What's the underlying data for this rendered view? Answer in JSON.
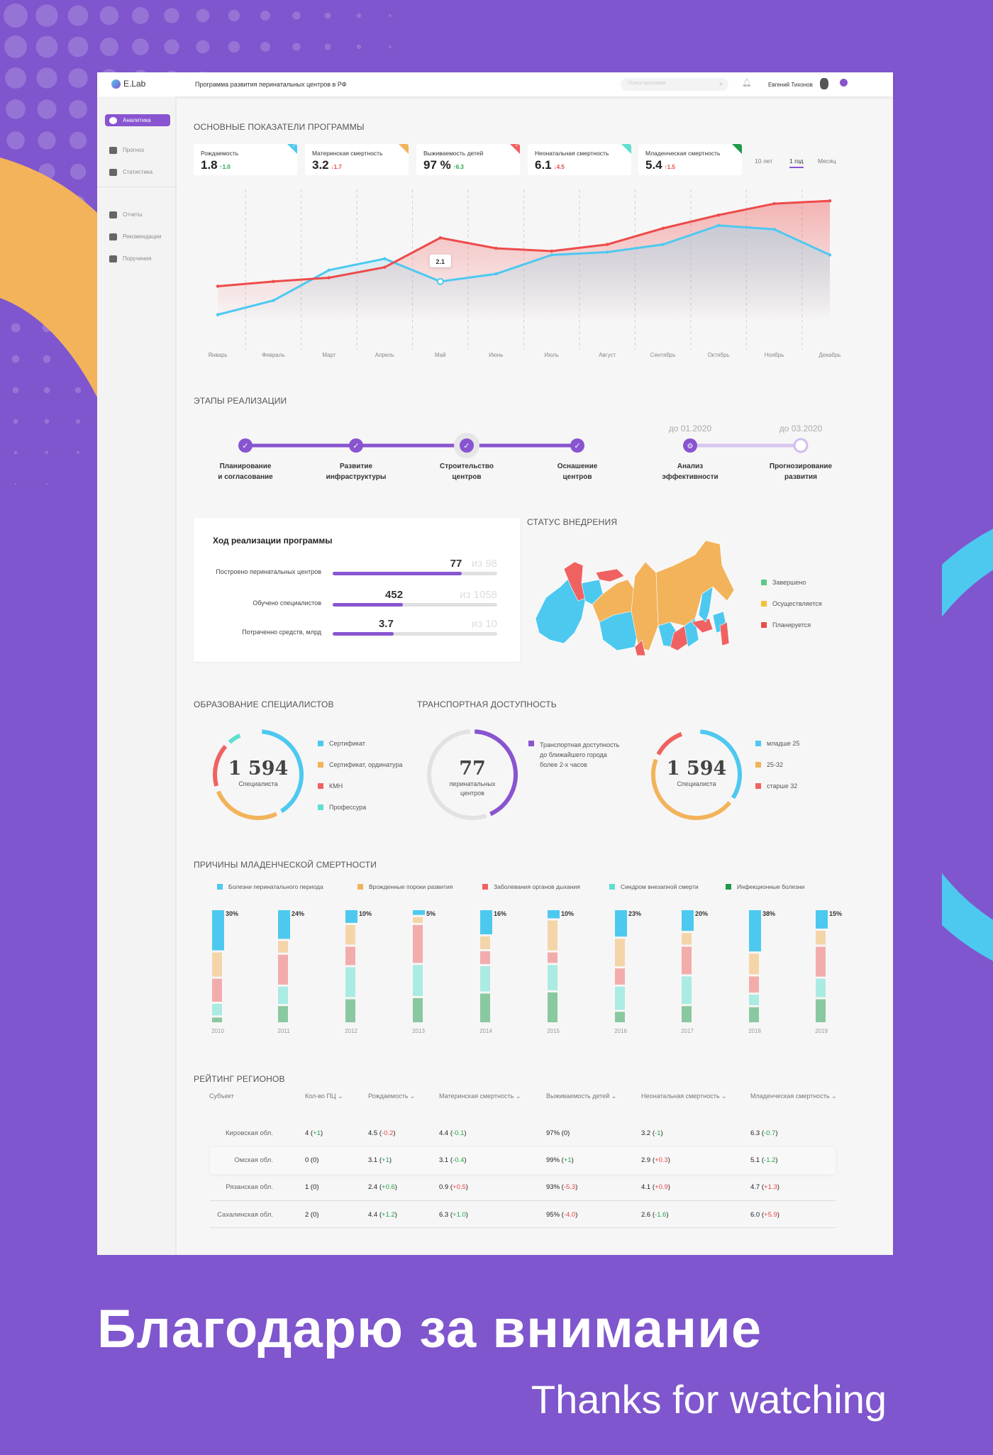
{
  "colors": {
    "accent": "#8854d0",
    "cyan": "#4dc9f0",
    "orange": "#f2b35b",
    "red": "#f06262",
    "teal": "#5ee0cf",
    "green": "#1e9a4a",
    "background": "#7f56cd"
  },
  "header": {
    "logo": "E.Lab",
    "title": "Программа развития перинатальных центров в  РФ",
    "search_placeholder": "Поиск программ",
    "user_name": "Евгений Тихонов"
  },
  "sidebar": {
    "items": [
      {
        "label": "Аналитика",
        "icon": "pie-chart-icon",
        "active": true
      },
      {
        "label": "Прогноз",
        "icon": "umbrella-icon"
      },
      {
        "label": "Статистика",
        "icon": "folder-icon"
      },
      {
        "label": "Отчеты",
        "icon": "document-icon"
      },
      {
        "label": "Рекомендации",
        "icon": "edit-document-icon"
      },
      {
        "label": "Поручения",
        "icon": "book-icon"
      }
    ]
  },
  "kpi": {
    "title": "ОСНОВНЫЕ ПОКАЗАТЕЛИ ПРОГРАММЫ",
    "cards": [
      {
        "label": "Рождаемость",
        "value": "1.8",
        "delta": "↑1.0",
        "delta_class": "good",
        "corner": "#4dc9f0",
        "check": true
      },
      {
        "label": "Материнская смертность",
        "value": "3.2",
        "delta": "↓1.7",
        "delta_class": "bad",
        "corner": "#f2b35b",
        "check": false
      },
      {
        "label": "Выживаемость детей",
        "value": "97 %",
        "delta": "↑6.3",
        "delta_class": "good",
        "corner": "#f06262",
        "check": true
      },
      {
        "label": "Неонатальная смертность",
        "value": "6.1",
        "delta": "↓4.5",
        "delta_class": "bad",
        "corner": "#5ee0cf",
        "check": false
      },
      {
        "label": "Младенческая смертность",
        "value": "5.4",
        "delta": "↑1.5",
        "delta_class": "bad",
        "corner": "#1e9a4a",
        "check": false
      }
    ],
    "tabs": [
      {
        "label": "10 лет"
      },
      {
        "label": "1 год",
        "active": true
      },
      {
        "label": "Месяц"
      }
    ]
  },
  "chart_data": [
    {
      "type": "line",
      "categories": [
        "Январь",
        "Февраль",
        "Март",
        "Апрель",
        "Май",
        "Июнь",
        "Июль",
        "Август",
        "Сентябрь",
        "Октябрь",
        "Ноябрь",
        "Декабрь"
      ],
      "series": [
        {
          "color": "#4dc9f0",
          "values": [
            0.35,
            1.1,
            2.7,
            3.3,
            2.1,
            2.5,
            3.5,
            3.65,
            4.05,
            5.05,
            4.85,
            3.5
          ]
        },
        {
          "color": "#ee4b4b",
          "values": [
            1.85,
            2.1,
            2.3,
            2.85,
            4.4,
            3.85,
            3.7,
            4.05,
            4.9,
            5.6,
            6.2,
            6.35
          ]
        }
      ],
      "ylim": [
        0,
        7
      ],
      "grid": "vertical-dashed",
      "tooltip": {
        "category": "Май",
        "value": "2.1"
      }
    },
    {
      "type": "bar",
      "stacked": true,
      "title": "ПРИЧИНЫ МЛАДЕНЧЕСКОЙ СМЕРТНОСТИ",
      "categories": [
        "2010",
        "2011",
        "2012",
        "2013",
        "2014",
        "2015",
        "2016",
        "2017",
        "2018",
        "2019"
      ],
      "data_labels": [
        "30%",
        "24%",
        "10%",
        "5%",
        "16%",
        "10%",
        "23%",
        "20%",
        "38%",
        "15%"
      ],
      "series": [
        {
          "name": "Болезни перинатального периода",
          "color": "#4dc9f0",
          "values": [
            37,
            27,
            13,
            6,
            23,
            9,
            25,
            20,
            38,
            18
          ]
        },
        {
          "name": "Врожденные пороки развития",
          "color": "#f2b35b",
          "values": [
            23,
            12,
            19,
            7,
            13,
            28,
            26,
            12,
            20,
            14
          ]
        },
        {
          "name": "Заболевания органов дыхания",
          "color": "#f06262",
          "values": [
            22,
            28,
            18,
            35,
            13,
            11,
            16,
            26,
            16,
            28
          ]
        },
        {
          "name": "Синдром внезапной смерти",
          "color": "#5ee0cf",
          "values": [
            12,
            17,
            28,
            29,
            24,
            24,
            22,
            26,
            11,
            18
          ]
        },
        {
          "name": "Инфекционные болезни",
          "color": "#1e9a4a",
          "values": [
            6,
            16,
            22,
            23,
            27,
            28,
            11,
            16,
            15,
            22
          ]
        }
      ],
      "legend": "top"
    }
  ],
  "stages": {
    "title": "ЭТАПЫ РЕАЛИЗАЦИИ",
    "items": [
      {
        "line1": "Планирование",
        "line2": "и согласование",
        "state": "done"
      },
      {
        "line1": "Развитие",
        "line2": "инфраструктуры",
        "state": "done"
      },
      {
        "line1": "Строительство",
        "line2": "центров",
        "state": "done-highlight"
      },
      {
        "line1": "Оснашение",
        "line2": "центров",
        "state": "done"
      },
      {
        "line1": "Анализ",
        "line2": "эффективности",
        "state": "in-progress",
        "date": "до 01.2020"
      },
      {
        "line1": "Прогнозирование",
        "line2": "развития",
        "state": "planned",
        "date": "до 03.2020"
      }
    ]
  },
  "progress": {
    "title": "Ход реализации программы",
    "rows": [
      {
        "label": "Построено перинатальных центров",
        "value": "77",
        "total": "из 98",
        "fraction": 0.786
      },
      {
        "label": "Обучено специалистов",
        "value": "452",
        "total": "из 1058",
        "fraction": 0.427
      },
      {
        "label": "Потраченно средств, млрд",
        "value": "3.7",
        "total": "из 10",
        "fraction": 0.37
      }
    ]
  },
  "status": {
    "title": "СТАТУС ВНЕДРЕНИЯ",
    "legend": [
      {
        "label": "Завершено",
        "color": "#5cc98a"
      },
      {
        "label": "Осуществляется",
        "color": "#f2c13b"
      },
      {
        "label": "Планируется",
        "color": "#ee4b4b"
      }
    ]
  },
  "education": {
    "title": "ОБРАЗОВАНИЕ СПЕЦИАЛИСТОВ",
    "value": "1 594",
    "caption": "Специалиста",
    "segments": [
      {
        "label": "Сертификат",
        "color": "#4dc9f0",
        "share": 0.41
      },
      {
        "label": "Сертификат, ординатура",
        "color": "#f2b35b",
        "share": 0.27
      },
      {
        "label": "КМН",
        "color": "#f06262",
        "share": 0.17
      },
      {
        "label": "Профессура",
        "color": "#5ee0cf",
        "share": 0.06
      }
    ]
  },
  "transport": {
    "title": "ТРАНСПОРТНАЯ ДОСТУПНОСТЬ",
    "value": "77",
    "caption1": "перинатальных",
    "caption2": "центров",
    "legend": [
      "Транспортная доступность",
      "до ближайшего города",
      "более 2-х часов"
    ],
    "color": "#8854d0",
    "fraction": 0.44
  },
  "age": {
    "value": "1 594",
    "caption": "Специалиста",
    "segments": [
      {
        "label": "младше 25",
        "color": "#4dc9f0",
        "share": 0.34
      },
      {
        "label": "25-32",
        "color": "#f2b35b",
        "share": 0.46
      },
      {
        "label": "старше 32",
        "color": "#f06262",
        "share": 0.13
      }
    ]
  },
  "rating": {
    "title": "РЕЙТИНГ РЕГИОНОВ",
    "columns": [
      "Субъект",
      "Кол-во ПЦ ⌄",
      "Рождаемость ⌄",
      "Материнская смертность ⌄",
      "Выживаемость детей ⌄",
      "Неонатальная смертность ⌄",
      "Младенческая смертность ⌄"
    ],
    "rows": [
      {
        "name": "Кировская обл.",
        "cells": [
          [
            "4",
            "+1",
            "good"
          ],
          [
            "4.5",
            "-0.2",
            "bad"
          ],
          [
            "4.4",
            "-0.1",
            "good"
          ],
          [
            "97%",
            "0",
            ""
          ],
          [
            "3.2",
            "-1",
            "good"
          ],
          [
            "6.3",
            "-0.7",
            "good"
          ]
        ]
      },
      {
        "name": "Омская обл.",
        "cells": [
          [
            "0",
            "0",
            ""
          ],
          [
            "3.1",
            "+1",
            "good"
          ],
          [
            "3.1",
            "-0.4",
            "good"
          ],
          [
            "99%",
            "+1",
            "good"
          ],
          [
            "2.9",
            "+0.3",
            "bad"
          ],
          [
            "5.1",
            "-1.2",
            "good"
          ]
        ]
      },
      {
        "name": "Рязанская обл.",
        "cells": [
          [
            "1",
            "0",
            ""
          ],
          [
            "2.4",
            "+0.6",
            "good"
          ],
          [
            "0.9",
            "+0.5",
            "bad"
          ],
          [
            "93%",
            "-5.3",
            "bad"
          ],
          [
            "4.1",
            "+0.9",
            "bad"
          ],
          [
            "4.7",
            "+1.3",
            "bad"
          ]
        ]
      },
      {
        "name": "Сахалинская обл.",
        "cells": [
          [
            "2",
            "0",
            ""
          ],
          [
            "4.4",
            "+1.2",
            "good"
          ],
          [
            "6.3",
            "+1.0",
            "good"
          ],
          [
            "95%",
            "-4.0",
            "bad"
          ],
          [
            "2.6",
            "-1.6",
            "good"
          ],
          [
            "6.0",
            "+5.9",
            "bad"
          ]
        ]
      }
    ]
  },
  "footer": {
    "thanks_ru": "Благодарю за внимание",
    "thanks_en": "Thanks for watching"
  }
}
